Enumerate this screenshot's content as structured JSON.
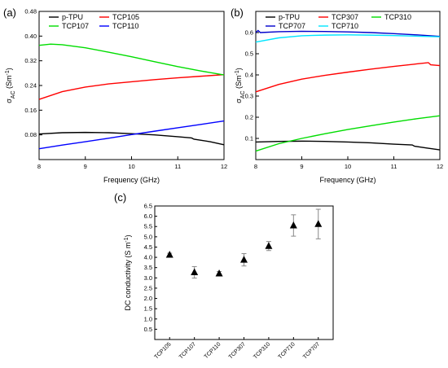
{
  "chart_data": [
    {
      "id": "a",
      "panel_label": "(a)",
      "type": "line",
      "xlabel": "Frequency (GHz)",
      "ylabel": "σAC (Sm⁻¹)",
      "ylabel_main": "σ",
      "ylabel_sub": "AC",
      "ylabel_rest": " (Sm",
      "ylabel_sup": "-1",
      "ylabel_end": ")",
      "xlim": [
        8,
        12
      ],
      "ylim": [
        0,
        0.48
      ],
      "xticks": [
        8,
        9,
        10,
        11,
        12
      ],
      "yticks": [
        0.08,
        0.16,
        0.24,
        0.32,
        0.4,
        0.48
      ],
      "yticks_fmt": [
        "0.08",
        "0.16",
        "0.24",
        "0.32",
        "0.40",
        "0.48"
      ],
      "legend_position": "top-left",
      "legend_cols": 2,
      "series": [
        {
          "name": "p-TPU",
          "color": "#000000",
          "x": [
            8,
            8.5,
            9,
            9.5,
            10,
            10.5,
            11,
            11.3,
            11.35,
            11.7,
            12
          ],
          "y": [
            0.083,
            0.087,
            0.088,
            0.087,
            0.084,
            0.08,
            0.074,
            0.07,
            0.066,
            0.058,
            0.048
          ]
        },
        {
          "name": "TCP105",
          "color": "#ff0000",
          "x": [
            8,
            8.5,
            9,
            9.5,
            10,
            10.5,
            11,
            11.5,
            12
          ],
          "y": [
            0.195,
            0.22,
            0.235,
            0.245,
            0.252,
            0.259,
            0.265,
            0.27,
            0.275
          ]
        },
        {
          "name": "TCP107",
          "color": "#00dd00",
          "x": [
            8,
            8.25,
            8.5,
            9,
            9.5,
            10,
            10.5,
            11,
            11.5,
            12
          ],
          "y": [
            0.37,
            0.374,
            0.372,
            0.362,
            0.348,
            0.333,
            0.317,
            0.301,
            0.287,
            0.274
          ]
        },
        {
          "name": "TCP110",
          "color": "#0000ff",
          "x": [
            8,
            8.5,
            9,
            9.5,
            10,
            10.5,
            11,
            11.5,
            12
          ],
          "y": [
            0.035,
            0.047,
            0.058,
            0.069,
            0.081,
            0.092,
            0.103,
            0.114,
            0.125
          ]
        }
      ]
    },
    {
      "id": "b",
      "panel_label": "(b)",
      "type": "line",
      "xlabel": "Frequency (GHz)",
      "ylabel": "σAC (Sm⁻¹)",
      "ylabel_main": "σ",
      "ylabel_sub": "AC",
      "ylabel_rest": " (Sm",
      "ylabel_sup": "-1",
      "ylabel_end": ")",
      "xlim": [
        8,
        12
      ],
      "ylim": [
        0,
        0.7
      ],
      "xticks": [
        8,
        9,
        10,
        11,
        12
      ],
      "yticks": [
        0.1,
        0.2,
        0.3,
        0.4,
        0.5,
        0.6
      ],
      "yticks_fmt": [
        "0.1",
        "0.2",
        "0.3",
        "0.4",
        "0.5",
        "0.6"
      ],
      "legend_position": "top-left",
      "legend_cols": 3,
      "series": [
        {
          "name": "p-TPU",
          "color": "#000000",
          "x": [
            8,
            8.5,
            9,
            9.5,
            10,
            10.5,
            11,
            11.4,
            11.45,
            11.7,
            12
          ],
          "y": [
            0.083,
            0.086,
            0.087,
            0.086,
            0.083,
            0.079,
            0.073,
            0.069,
            0.063,
            0.055,
            0.046
          ]
        },
        {
          "name": "TCP307",
          "color": "#ff0000",
          "x": [
            8,
            8.5,
            9,
            9.5,
            10,
            10.5,
            11,
            11.5,
            11.75,
            11.8,
            12
          ],
          "y": [
            0.32,
            0.355,
            0.38,
            0.398,
            0.413,
            0.427,
            0.44,
            0.452,
            0.458,
            0.448,
            0.444
          ]
        },
        {
          "name": "TCP310",
          "color": "#00dd00",
          "x": [
            8,
            8.5,
            9,
            9.5,
            10,
            10.5,
            11,
            11.5,
            12
          ],
          "y": [
            0.04,
            0.075,
            0.1,
            0.122,
            0.142,
            0.16,
            0.177,
            0.193,
            0.207
          ]
        },
        {
          "name": "TCP707",
          "color": "#0000cc",
          "x": [
            8,
            8.05,
            8.1,
            8.5,
            9,
            9.5,
            10,
            10.5,
            11,
            11.5,
            12
          ],
          "y": [
            0.6,
            0.61,
            0.6,
            0.604,
            0.606,
            0.605,
            0.603,
            0.6,
            0.595,
            0.589,
            0.582
          ]
        },
        {
          "name": "TCP710",
          "color": "#00e5ff",
          "x": [
            8,
            8.5,
            9,
            9.5,
            10,
            10.5,
            11,
            11.5,
            12
          ],
          "y": [
            0.555,
            0.575,
            0.585,
            0.588,
            0.589,
            0.588,
            0.586,
            0.583,
            0.58
          ]
        }
      ]
    },
    {
      "id": "c",
      "panel_label": "(c)",
      "type": "scatter",
      "xlabel": "",
      "ylabel": "DC conductivity (S m⁻¹)",
      "ylabel_main": "DC conductivity (S m",
      "ylabel_sup": "-1",
      "ylabel_end": ")",
      "ylim": [
        0,
        6.5
      ],
      "yticks": [
        0.5,
        1.0,
        1.5,
        2.0,
        2.5,
        3.0,
        3.5,
        4.0,
        4.5,
        5.0,
        5.5,
        6.0,
        6.5
      ],
      "yticks_fmt": [
        "0.5",
        "1.0",
        "1.5",
        "2.0",
        "2.5",
        "3.0",
        "3.5",
        "4.0",
        "4.5",
        "5.0",
        "5.5",
        "6.0",
        "6.5"
      ],
      "categories": [
        "TCP105",
        "TCP107",
        "TCP110",
        "TCP307",
        "TCP310",
        "TCP710",
        "TCP707"
      ],
      "values": [
        4.12,
        3.27,
        3.21,
        3.88,
        4.55,
        5.55,
        5.62
      ],
      "errors": [
        0.08,
        0.28,
        0.1,
        0.3,
        0.22,
        0.52,
        0.72
      ],
      "marker": "triangle-up",
      "marker_color": "#000000"
    }
  ]
}
